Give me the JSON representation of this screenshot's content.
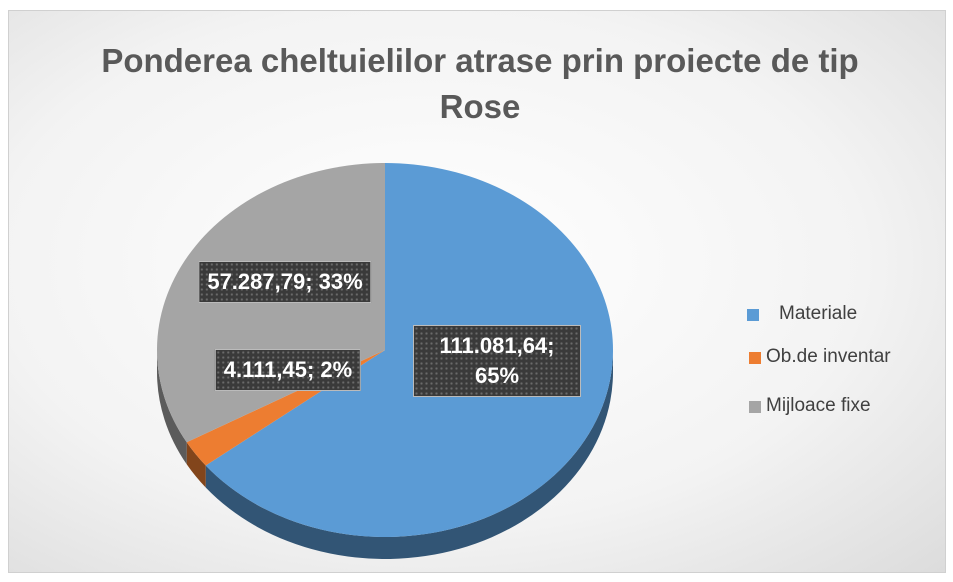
{
  "chart_data": {
    "type": "pie",
    "title": "Ponderea cheltuielilor atrase prin proiecte de tip Rose",
    "categories": [
      "Materiale",
      "Ob.de inventar",
      "Mijloace fixe"
    ],
    "values": [
      111081.64,
      4111.45,
      57287.79
    ],
    "value_labels": [
      "111.081,64; 65%",
      "4.111,45; 2%",
      "57.287,79; 33%"
    ],
    "colors": [
      "#5b9bd5",
      "#ed7d31",
      "#a5a5a5"
    ],
    "legend": "right"
  }
}
